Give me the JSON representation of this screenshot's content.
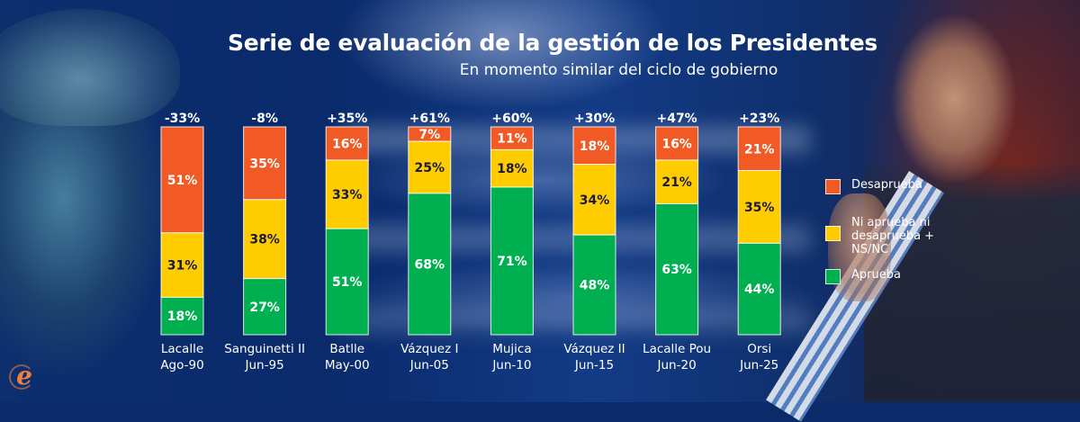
{
  "header": {
    "title": "Serie de evaluación de la gestión de los Presidentes",
    "subtitle": "En momento similar del ciclo de gobierno"
  },
  "colors": {
    "desaprueba": "#F15A24",
    "ni": "#FFCC00",
    "aprueba": "#00B050",
    "label_dark": "#1a1a3a",
    "label_light": "#ffffff"
  },
  "legend": {
    "items": [
      {
        "key": "desaprueba",
        "label": "Desaprueba"
      },
      {
        "key": "ni",
        "label": "Ni aprueba ni desaprueba + NS/NC"
      },
      {
        "key": "aprueba",
        "label": "Aprueba"
      }
    ]
  },
  "logo": {
    "glyph": "e",
    "icon": "elpais-e-logo"
  },
  "chart_data": {
    "type": "bar",
    "stacked": true,
    "title": "Serie de evaluación de la gestión de los Presidentes",
    "subtitle": "En momento similar del ciclo de gobierno",
    "xlabel": "",
    "ylabel": "",
    "ylim": [
      0,
      100
    ],
    "grid": false,
    "legend_position": "right",
    "categories": [
      {
        "name": "Lacalle",
        "date": "Ago-90"
      },
      {
        "name": "Sanguinetti II",
        "date": "Jun-95"
      },
      {
        "name": "Batlle",
        "date": "May-00"
      },
      {
        "name": "Vázquez I",
        "date": "Jun-05"
      },
      {
        "name": "Mujica",
        "date": "Jun-10"
      },
      {
        "name": "Vázquez II",
        "date": "Jun-15"
      },
      {
        "name": "Lacalle Pou",
        "date": "Jun-20"
      },
      {
        "name": "Orsi",
        "date": "Jun-25"
      }
    ],
    "series": [
      {
        "name": "Aprueba",
        "key": "aprueba",
        "values": [
          18,
          27,
          51,
          68,
          71,
          48,
          63,
          44
        ]
      },
      {
        "name": "Ni aprueba ni desaprueba + NS/NC",
        "key": "ni",
        "values": [
          31,
          38,
          33,
          25,
          18,
          34,
          21,
          35
        ]
      },
      {
        "name": "Desaprueba",
        "key": "desaprueba",
        "values": [
          51,
          35,
          16,
          7,
          11,
          18,
          16,
          21
        ]
      }
    ],
    "net_labels": [
      "-33%",
      "-8%",
      "+35%",
      "+61%",
      "+60%",
      "+30%",
      "+47%",
      "+23%"
    ],
    "value_suffix": "%"
  }
}
